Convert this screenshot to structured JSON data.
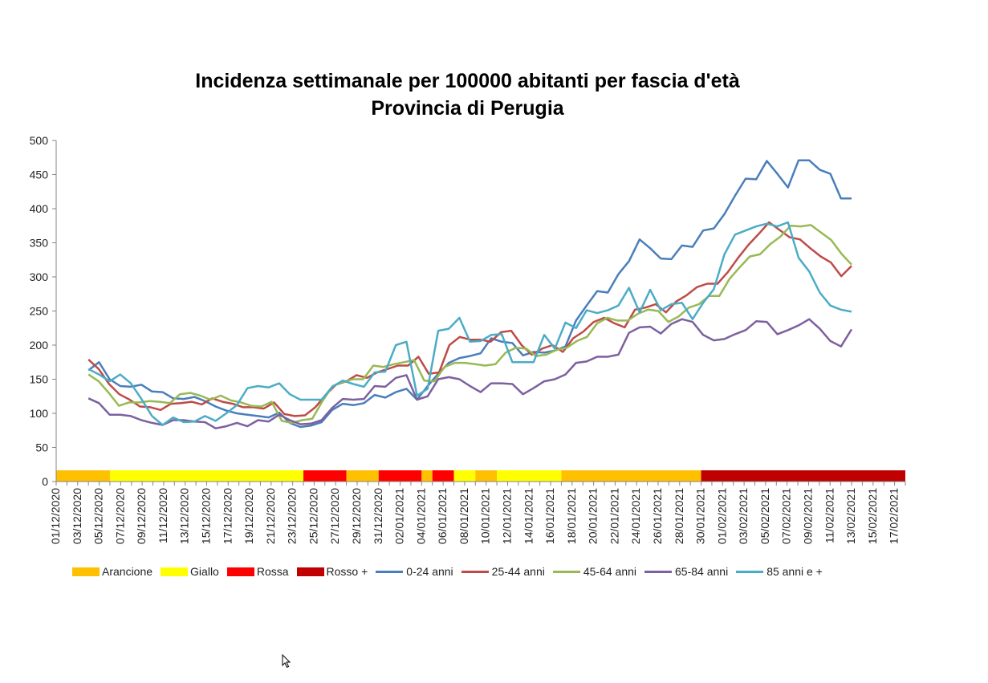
{
  "title_line1": "Incidenza settimanale per 100000 abitanti per fascia d'età",
  "title_line2": "Provincia di Perugia",
  "chart_data": {
    "type": "line",
    "title": "Incidenza settimanale per 100000 abitanti per fascia d'età — Provincia di Perugia",
    "xlabel": "",
    "ylabel": "",
    "ylim": [
      0,
      500
    ],
    "yticks": [
      0,
      50,
      100,
      150,
      200,
      250,
      300,
      350,
      400,
      450,
      500
    ],
    "grid": false,
    "legend_position": "bottom",
    "x_start": "01/12/2020",
    "x_tick_labels": [
      "01/12/2020",
      "03/12/2020",
      "05/12/2020",
      "07/12/2020",
      "09/12/2020",
      "11/12/2020",
      "13/12/2020",
      "15/12/2020",
      "17/12/2020",
      "19/12/2020",
      "21/12/2020",
      "23/12/2020",
      "25/12/2020",
      "27/12/2020",
      "29/12/2020",
      "31/12/2020",
      "02/01/2021",
      "04/01/2021",
      "06/01/2021",
      "08/01/2021",
      "10/01/2021",
      "12/01/2021",
      "14/01/2021",
      "16/01/2021",
      "18/01/2021",
      "20/01/2021",
      "22/01/2021",
      "24/01/2021",
      "26/01/2021",
      "28/01/2021",
      "30/01/2021",
      "01/02/2021",
      "03/02/2021",
      "05/02/2021",
      "07/02/2021",
      "09/02/2021",
      "11/02/2021",
      "13/02/2021",
      "15/02/2021",
      "17/02/2021"
    ],
    "zones": [
      {
        "name": "Arancione",
        "from": "01/12/2020",
        "to": "05/12/2020",
        "color": "#FFC000"
      },
      {
        "name": "Giallo",
        "from": "06/12/2020",
        "to": "24/12/2020",
        "color": "#FFFF00"
      },
      {
        "name": "Rossa",
        "from": "24/12/2020",
        "to": "27/12/2020",
        "color": "#FF0000"
      },
      {
        "name": "Arancione",
        "from": "28/12/2020",
        "to": "30/12/2020",
        "color": "#FFC000"
      },
      {
        "name": "Rossa",
        "from": "31/12/2020",
        "to": "03/01/2021",
        "color": "#FF0000"
      },
      {
        "name": "Arancione",
        "from": "04/01/2021",
        "to": "04/01/2021",
        "color": "#FFC000"
      },
      {
        "name": "Rossa",
        "from": "05/01/2021",
        "to": "06/01/2021",
        "color": "#FF0000"
      },
      {
        "name": "Giallo",
        "from": "07/01/2021",
        "to": "08/01/2021",
        "color": "#FFFF00"
      },
      {
        "name": "Arancione",
        "from": "09/01/2021",
        "to": "10/01/2021",
        "color": "#FFC000"
      },
      {
        "name": "Giallo",
        "from": "11/01/2021",
        "to": "16/01/2021",
        "color": "#FFFF00"
      },
      {
        "name": "Arancione",
        "from": "17/01/2021",
        "to": "29/01/2021",
        "color": "#FFC000"
      },
      {
        "name": "Rosso +",
        "from": "30/01/2021",
        "to": "17/02/2021",
        "color": "#C00000"
      }
    ],
    "series": [
      {
        "name": "0-24 anni",
        "color": "#4A7EBB",
        "values": [
          163,
          175,
          150,
          140,
          139,
          142,
          132,
          131,
          122,
          121,
          124,
          118,
          110,
          104,
          100,
          98,
          96,
          94,
          101,
          86,
          80,
          82,
          87,
          105,
          114,
          112,
          115,
          127,
          123,
          131,
          136,
          120,
          140,
          158,
          174,
          181,
          184,
          188,
          210,
          205,
          203,
          185,
          190,
          189,
          192,
          198,
          236,
          258,
          279,
          277,
          304,
          323,
          355,
          342,
          327,
          326,
          346,
          344,
          368,
          371,
          392,
          419,
          444,
          443,
          470,
          451,
          431,
          471,
          471,
          457,
          451,
          415,
          415
        ]
      },
      {
        "name": "25-44 anni",
        "color": "#BE4B48",
        "values": [
          179,
          165,
          143,
          128,
          120,
          110,
          109,
          105,
          114,
          115,
          117,
          113,
          122,
          117,
          114,
          109,
          109,
          107,
          116,
          99,
          96,
          97,
          109,
          127,
          142,
          147,
          156,
          152,
          160,
          165,
          170,
          170,
          183,
          158,
          160,
          200,
          212,
          208,
          208,
          205,
          219,
          221,
          200,
          186,
          195,
          200,
          190,
          210,
          220,
          234,
          240,
          232,
          226,
          252,
          255,
          260,
          248,
          264,
          273,
          285,
          290,
          290,
          307,
          328,
          347,
          363,
          380,
          369,
          358,
          355,
          342,
          330,
          321,
          301,
          316
        ]
      },
      {
        "name": "45-64 anni",
        "color": "#98B954",
        "values": [
          157,
          147,
          130,
          111,
          116,
          116,
          118,
          117,
          115,
          128,
          130,
          126,
          120,
          126,
          119,
          116,
          111,
          110,
          117,
          89,
          86,
          90,
          92,
          118,
          140,
          146,
          150,
          150,
          170,
          168,
          172,
          175,
          178,
          148,
          147,
          168,
          174,
          174,
          172,
          170,
          172,
          189,
          196,
          195,
          184,
          186,
          193,
          196,
          206,
          212,
          232,
          240,
          236,
          236,
          246,
          252,
          250,
          234,
          242,
          255,
          260,
          272,
          272,
          297,
          314,
          330,
          333,
          348,
          359,
          375,
          374,
          376,
          365,
          354,
          334,
          318
        ]
      },
      {
        "name": "65-84 anni",
        "color": "#7D60A0",
        "values": [
          122,
          115,
          98,
          98,
          96,
          90,
          86,
          83,
          90,
          90,
          88,
          87,
          78,
          81,
          86,
          81,
          90,
          88,
          98,
          90,
          84,
          85,
          90,
          108,
          121,
          120,
          121,
          140,
          139,
          152,
          156,
          120,
          125,
          150,
          153,
          150,
          140,
          131,
          144,
          144,
          143,
          128,
          137,
          147,
          150,
          157,
          174,
          176,
          183,
          183,
          186,
          218,
          226,
          227,
          217,
          231,
          238,
          234,
          215,
          207,
          209,
          216,
          222,
          235,
          234,
          216,
          222,
          229,
          238,
          224,
          206,
          198,
          223
        ]
      },
      {
        "name": "85 anni e +",
        "color": "#4BACC6",
        "values": [
          165,
          157,
          147,
          157,
          144,
          121,
          96,
          83,
          94,
          87,
          88,
          96,
          89,
          100,
          112,
          137,
          140,
          138,
          144,
          128,
          120,
          120,
          120,
          139,
          148,
          143,
          139,
          160,
          161,
          200,
          205,
          126,
          136,
          221,
          224,
          240,
          205,
          206,
          215,
          216,
          175,
          175,
          175,
          215,
          195,
          233,
          225,
          251,
          247,
          251,
          258,
          284,
          248,
          281,
          251,
          260,
          262,
          238,
          262,
          282,
          333,
          362,
          368,
          374,
          378,
          374,
          380,
          328,
          308,
          277,
          258,
          252,
          249
        ]
      }
    ]
  },
  "legend": [
    {
      "label": "Arancione",
      "kind": "box",
      "color": "#FFC000"
    },
    {
      "label": "Giallo",
      "kind": "box",
      "color": "#FFFF00"
    },
    {
      "label": "Rossa",
      "kind": "box",
      "color": "#FF0000"
    },
    {
      "label": "Rosso +",
      "kind": "box",
      "color": "#C00000"
    },
    {
      "label": "0-24 anni",
      "kind": "line",
      "color": "#4A7EBB"
    },
    {
      "label": "25-44 anni",
      "kind": "line",
      "color": "#BE4B48"
    },
    {
      "label": "45-64 anni",
      "kind": "line",
      "color": "#98B954"
    },
    {
      "label": "65-84 anni",
      "kind": "line",
      "color": "#7D60A0"
    },
    {
      "label": "85 anni e +",
      "kind": "line",
      "color": "#4BACC6"
    }
  ],
  "cursor_icon": "mouse-pointer-icon"
}
